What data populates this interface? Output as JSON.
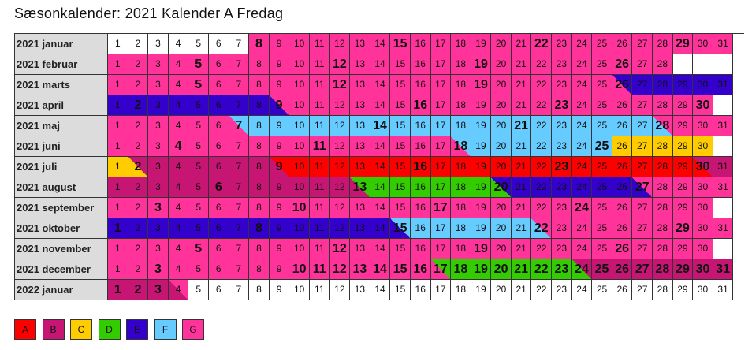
{
  "title": "Sæsonkalender: 2021 Kalender A Fredag",
  "colors": {
    "A": "#ff0000",
    "B": "#c71573",
    "C": "#ffcc00",
    "D": "#33cc00",
    "E": "#3300cc",
    "F": "#66ccff",
    "G": "#ff3399",
    "W": "#ffffff"
  },
  "legend": [
    "A",
    "B",
    "C",
    "D",
    "E",
    "F",
    "G"
  ],
  "months": [
    {
      "label": "2021 januar",
      "days": 31,
      "bold": [
        8,
        15,
        22,
        29
      ],
      "segs": [
        [
          1,
          7,
          "W"
        ],
        [
          8,
          31,
          "G"
        ]
      ]
    },
    {
      "label": "2021 februar",
      "days": 28,
      "bold": [
        5,
        12,
        19,
        26
      ],
      "segs": [
        [
          1,
          28,
          "G"
        ]
      ]
    },
    {
      "label": "2021 marts",
      "days": 31,
      "bold": [
        5,
        12,
        19,
        26
      ],
      "segs": [
        [
          1,
          25,
          "G"
        ],
        [
          26,
          26,
          "G/E"
        ],
        [
          27,
          31,
          "E"
        ]
      ]
    },
    {
      "label": "2021 april",
      "days": 30,
      "bold": [
        2,
        9,
        16,
        23,
        30
      ],
      "segs": [
        [
          1,
          8,
          "E"
        ],
        [
          9,
          9,
          "E/G"
        ],
        [
          10,
          30,
          "G"
        ]
      ]
    },
    {
      "label": "2021 maj",
      "days": 31,
      "bold": [
        7,
        14,
        21,
        28
      ],
      "segs": [
        [
          1,
          6,
          "G"
        ],
        [
          7,
          7,
          "G/F"
        ],
        [
          8,
          27,
          "F"
        ],
        [
          28,
          28,
          "F/G"
        ],
        [
          29,
          31,
          "G"
        ]
      ]
    },
    {
      "label": "2021 juni",
      "days": 30,
      "bold": [
        4,
        11,
        18,
        25
      ],
      "segs": [
        [
          1,
          17,
          "G"
        ],
        [
          18,
          18,
          "G/F"
        ],
        [
          19,
          25,
          "F"
        ],
        [
          26,
          30,
          "C"
        ]
      ]
    },
    {
      "label": "2021 juli",
      "days": 31,
      "bold": [
        2,
        9,
        16,
        23,
        30
      ],
      "segs": [
        [
          1,
          1,
          "C"
        ],
        [
          2,
          2,
          "C/B"
        ],
        [
          3,
          8,
          "B"
        ],
        [
          9,
          9,
          "B/A"
        ],
        [
          10,
          29,
          "A"
        ],
        [
          30,
          30,
          "A/B"
        ],
        [
          31,
          31,
          "B"
        ]
      ]
    },
    {
      "label": "2021 august",
      "days": 31,
      "bold": [
        6,
        13,
        20,
        27
      ],
      "segs": [
        [
          1,
          12,
          "B"
        ],
        [
          13,
          13,
          "B/D"
        ],
        [
          14,
          19,
          "D"
        ],
        [
          20,
          20,
          "D/E"
        ],
        [
          21,
          26,
          "E"
        ],
        [
          27,
          27,
          "E/G"
        ],
        [
          28,
          31,
          "G"
        ]
      ]
    },
    {
      "label": "2021 september",
      "days": 30,
      "bold": [
        3,
        10,
        17,
        24
      ],
      "segs": [
        [
          1,
          30,
          "G"
        ]
      ]
    },
    {
      "label": "2021 oktober",
      "days": 31,
      "bold": [
        1,
        8,
        15,
        22,
        29
      ],
      "segs": [
        [
          1,
          14,
          "E"
        ],
        [
          15,
          15,
          "E/F"
        ],
        [
          16,
          21,
          "F"
        ],
        [
          22,
          22,
          "F/G"
        ],
        [
          23,
          31,
          "G"
        ]
      ]
    },
    {
      "label": "2021 november",
      "days": 30,
      "bold": [
        5,
        12,
        19,
        26
      ],
      "segs": [
        [
          1,
          30,
          "G"
        ]
      ]
    },
    {
      "label": "2021 december",
      "days": 31,
      "bold": [
        3,
        10,
        11,
        12,
        13,
        14,
        15,
        16,
        17,
        18,
        19,
        20,
        21,
        22,
        23,
        24,
        25,
        26,
        27,
        28,
        29,
        30,
        31
      ],
      "segs": [
        [
          1,
          16,
          "G"
        ],
        [
          17,
          17,
          "G/D"
        ],
        [
          18,
          23,
          "D"
        ],
        [
          24,
          24,
          "D/B"
        ],
        [
          25,
          31,
          "B"
        ]
      ]
    },
    {
      "label": "2022 januar",
      "days": 31,
      "bold": [
        1,
        2,
        3
      ],
      "segs": [
        [
          1,
          3,
          "B"
        ],
        [
          4,
          4,
          "B/G"
        ],
        [
          5,
          31,
          "W"
        ]
      ]
    }
  ]
}
